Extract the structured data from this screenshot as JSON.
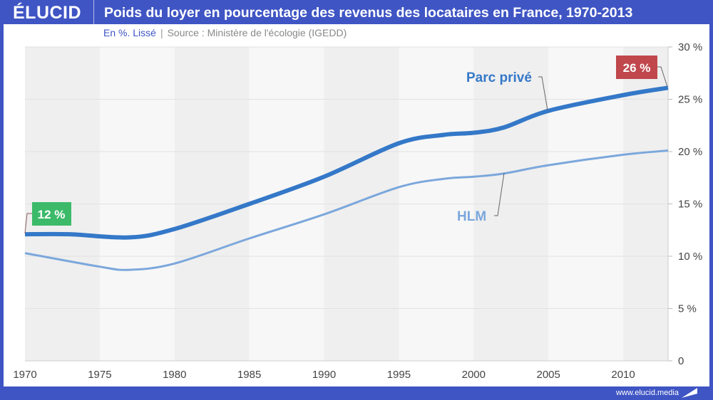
{
  "header": {
    "logo": "ÉLUCID",
    "title": "Poids du loyer en pourcentage des revenus des locataires en France, 1970-2013"
  },
  "subtitle": {
    "lead": "En %. Lissé",
    "separator": "|",
    "source": "Source : Ministère de l'écologie (IGEDD)"
  },
  "footer": {
    "url": "www.elucid.media"
  },
  "colors": {
    "brand": "#3f55c4",
    "parc_prive": "#3478c8",
    "hlm": "#7ba7dc",
    "label_start": "#3cba6a",
    "label_end": "#c0474c"
  },
  "chart_data": {
    "type": "line",
    "title": "Poids du loyer en pourcentage des revenus des locataires en France, 1970-2013",
    "xlabel": "",
    "ylabel": "",
    "xlim": [
      1970,
      2013
    ],
    "ylim": [
      0,
      30
    ],
    "x_ticks": [
      1970,
      1975,
      1980,
      1985,
      1990,
      1995,
      2000,
      2005,
      2010
    ],
    "x_tick_labels": [
      "1970",
      "1975",
      "1980",
      "1985",
      "1990",
      "1995",
      "2000",
      "2005",
      "2010"
    ],
    "y_ticks": [
      0,
      5,
      10,
      15,
      20,
      25,
      30
    ],
    "y_tick_labels": [
      "0",
      "5 %",
      "10 %",
      "15 %",
      "20 %",
      "25 %",
      "30 %"
    ],
    "grid": true,
    "series": [
      {
        "name": "Parc privé",
        "x": [
          1970,
          1973,
          1977,
          1980,
          1985,
          1990,
          1995,
          1998,
          2000,
          2002,
          2005,
          2010,
          2013
        ],
        "values": [
          12.1,
          12.1,
          11.8,
          12.6,
          15.0,
          17.6,
          20.8,
          21.6,
          21.8,
          22.3,
          23.9,
          25.4,
          26.1
        ]
      },
      {
        "name": "HLM",
        "x": [
          1970,
          1975,
          1977,
          1980,
          1985,
          1990,
          1995,
          1998,
          2000,
          2002,
          2005,
          2010,
          2013
        ],
        "values": [
          10.3,
          9.0,
          8.7,
          9.3,
          11.7,
          14.0,
          16.6,
          17.4,
          17.6,
          17.9,
          18.7,
          19.7,
          20.1
        ]
      }
    ],
    "annotations": [
      {
        "text": "12 %",
        "x": 1970,
        "series": "Parc privé"
      },
      {
        "text": "26 %",
        "x": 2013,
        "series": "Parc privé"
      }
    ]
  }
}
